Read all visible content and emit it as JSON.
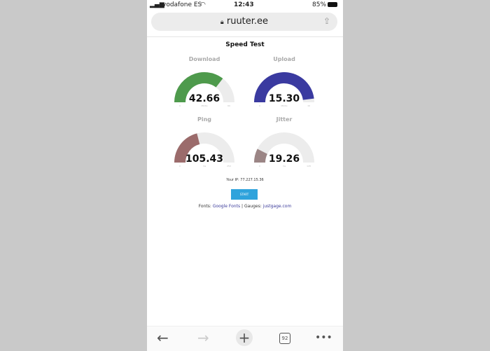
{
  "status": {
    "carrier": "vodafone ES",
    "time": "12:43",
    "battery": "85%"
  },
  "browser": {
    "url": "ruuter.ee",
    "tab_count": "92"
  },
  "page": {
    "title": "Speed Test",
    "gauges": [
      {
        "label": "Download",
        "value": "42.66",
        "min": "0",
        "max": "60",
        "unit": "Mbit/s",
        "fraction": 0.71,
        "color": "#4e9a4c"
      },
      {
        "label": "Upload",
        "value": "15.30",
        "min": "0",
        "max": "16",
        "unit": "Mbit/s",
        "fraction": 0.96,
        "color": "#3a3aa0"
      },
      {
        "label": "Ping",
        "value": "105.43",
        "min": "0",
        "max": "250",
        "unit": "ms",
        "fraction": 0.42,
        "color": "#9b6b6b"
      },
      {
        "label": "Jitter",
        "value": "19.26",
        "min": "0",
        "max": "128",
        "unit": "ms",
        "fraction": 0.15,
        "color": "#9b8585"
      }
    ],
    "ip": "Your IP: 77.227.15.36",
    "start": "START",
    "credits": {
      "fonts_prefix": "Fonts:",
      "fonts_link": "Google Fonts",
      "sep": "|",
      "gauges_prefix": "Gauges:",
      "gauges_link": "justgage.com"
    }
  }
}
